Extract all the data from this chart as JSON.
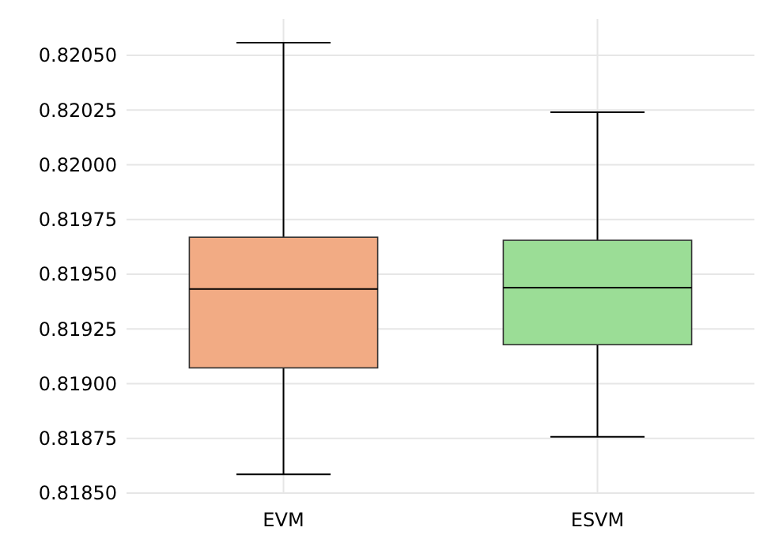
{
  "chart_data": {
    "type": "box",
    "categories": [
      "EVM",
      "ESVM"
    ],
    "boxes": [
      {
        "low": 0.818586,
        "q1": 0.819072,
        "median": 0.819432,
        "q3": 0.819669,
        "high": 0.820558
      },
      {
        "low": 0.818757,
        "q1": 0.819178,
        "median": 0.819439,
        "q3": 0.819655,
        "high": 0.82024
      }
    ],
    "colors": [
      "#f2ab84",
      "#9bdd96"
    ],
    "ylim": [
      0.8185,
      0.820666
    ],
    "yticks": [
      {
        "value": 0.8185,
        "label": "0.81850"
      },
      {
        "value": 0.81875,
        "label": "0.81875"
      },
      {
        "value": 0.819,
        "label": "0.81900"
      },
      {
        "value": 0.81925,
        "label": "0.81925"
      },
      {
        "value": 0.8195,
        "label": "0.81950"
      },
      {
        "value": 0.81975,
        "label": "0.81975"
      },
      {
        "value": 0.82,
        "label": "0.82000"
      },
      {
        "value": 0.82025,
        "label": "0.82025"
      },
      {
        "value": 0.8205,
        "label": "0.82050"
      }
    ],
    "grid": true
  }
}
